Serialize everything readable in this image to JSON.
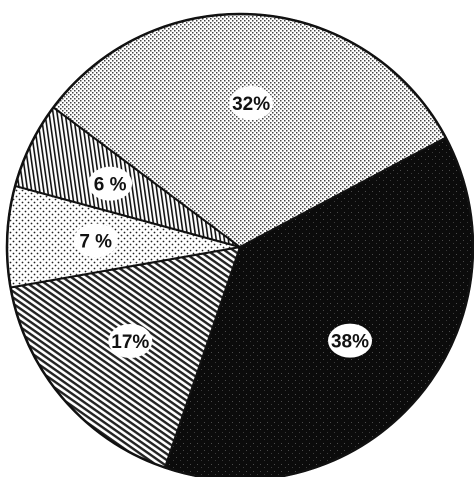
{
  "chart_data": {
    "type": "pie",
    "title": "",
    "slices": [
      {
        "label": "38%",
        "value": 38,
        "pattern": "dark-speckle",
        "color": "#111111"
      },
      {
        "label": "17%",
        "value": 17,
        "pattern": "diagonal-hatch",
        "color": "#8c8c8c"
      },
      {
        "label": "7 %",
        "value": 7,
        "pattern": "dots",
        "color": "#f2f2f2"
      },
      {
        "label": "6 %",
        "value": 6,
        "pattern": "vertical-stripes",
        "color": "#555555"
      },
      {
        "label": "32%",
        "value": 32,
        "pattern": "fine-stipple",
        "color": "#cfcfcf"
      }
    ],
    "start_angle_deg": 62,
    "direction": "clockwise",
    "legend": "none",
    "grid": false
  }
}
